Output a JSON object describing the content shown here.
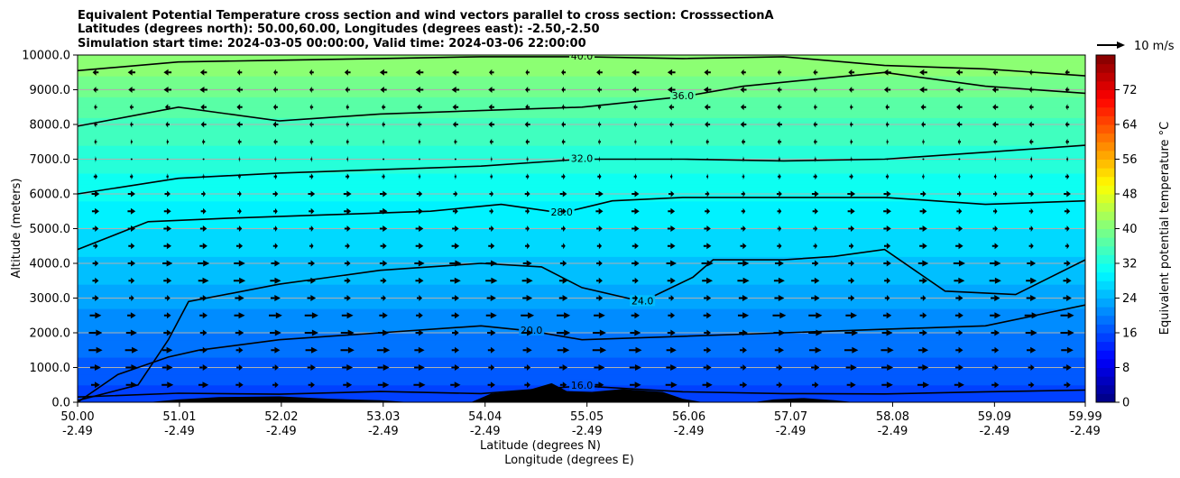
{
  "chart_data": {
    "type": "heatmap",
    "title": [
      "Equivalent Potential Temperature cross section and wind vectors parallel to cross section: CrosssectionA",
      "Latitudes (degrees north): 50.00,60.00, Longitudes (degrees east): -2.50,-2.50",
      "Simulation start time: 2024-03-05 00:00:00, Valid time: 2024-03-06 22:00:00"
    ],
    "xlabel": "Latitude (degrees N)",
    "xlabel2": "Longitude (degrees E)",
    "ylabel": "Altitude (meters)",
    "xlim": [
      50.0,
      59.99
    ],
    "ylim": [
      0,
      10000
    ],
    "x_ticks": [
      {
        "lat": 50.0,
        "lat_label": "50.00",
        "lon_label": "-2.49"
      },
      {
        "lat": 51.01,
        "lat_label": "51.01",
        "lon_label": "-2.49"
      },
      {
        "lat": 52.02,
        "lat_label": "52.02",
        "lon_label": "-2.49"
      },
      {
        "lat": 53.03,
        "lat_label": "53.03",
        "lon_label": "-2.49"
      },
      {
        "lat": 54.04,
        "lat_label": "54.04",
        "lon_label": "-2.49"
      },
      {
        "lat": 55.05,
        "lat_label": "55.05",
        "lon_label": "-2.49"
      },
      {
        "lat": 56.06,
        "lat_label": "56.06",
        "lon_label": "-2.49"
      },
      {
        "lat": 57.07,
        "lat_label": "57.07",
        "lon_label": "-2.49"
      },
      {
        "lat": 58.08,
        "lat_label": "58.08",
        "lon_label": "-2.49"
      },
      {
        "lat": 59.09,
        "lat_label": "59.09",
        "lon_label": "-2.49"
      },
      {
        "lat": 59.99,
        "lat_label": "59.99",
        "lon_label": "-2.49"
      }
    ],
    "y_ticks": [
      {
        "value": 0,
        "label": "0.0"
      },
      {
        "value": 1000,
        "label": "1000.0"
      },
      {
        "value": 2000,
        "label": "2000.0"
      },
      {
        "value": 3000,
        "label": "3000.0"
      },
      {
        "value": 4000,
        "label": "4000.0"
      },
      {
        "value": 5000,
        "label": "5000.0"
      },
      {
        "value": 6000,
        "label": "6000.0"
      },
      {
        "value": 7000,
        "label": "7000.0"
      },
      {
        "value": 8000,
        "label": "8000.0"
      },
      {
        "value": 9000,
        "label": "9000.0"
      },
      {
        "value": 10000,
        "label": "10000.0"
      }
    ],
    "grid": "horizontal",
    "colorbar": {
      "label": "Equivalent potential temperature °C",
      "range": [
        0,
        80
      ],
      "ticks": [
        {
          "value": 0,
          "label": "0"
        },
        {
          "value": 8,
          "label": "8"
        },
        {
          "value": 16,
          "label": "16"
        },
        {
          "value": 24,
          "label": "24"
        },
        {
          "value": 32,
          "label": "32"
        },
        {
          "value": 40,
          "label": "40"
        },
        {
          "value": 48,
          "label": "48"
        },
        {
          "value": 56,
          "label": "56"
        },
        {
          "value": 64,
          "label": "64"
        },
        {
          "value": 72,
          "label": "72"
        }
      ],
      "colormap": "jet",
      "placement": "right"
    },
    "quiver_key": {
      "label": "10 m/s",
      "speed": 10
    },
    "field_profile": [
      {
        "alt": 0,
        "value": 15
      },
      {
        "alt": 1000,
        "value": 17
      },
      {
        "alt": 2000,
        "value": 20
      },
      {
        "alt": 3000,
        "value": 23
      },
      {
        "alt": 4000,
        "value": 25.5
      },
      {
        "alt": 5000,
        "value": 28
      },
      {
        "alt": 6000,
        "value": 30.5
      },
      {
        "alt": 7000,
        "value": 33
      },
      {
        "alt": 8000,
        "value": 35.5
      },
      {
        "alt": 9000,
        "value": 38.5
      },
      {
        "alt": 10000,
        "value": 42
      }
    ],
    "contours": [
      {
        "level": 16.0,
        "label": "16.0",
        "points": [
          [
            50.0,
            150
          ],
          [
            51.0,
            260
          ],
          [
            52.0,
            230
          ],
          [
            53.0,
            310
          ],
          [
            54.0,
            250
          ],
          [
            55.0,
            470
          ],
          [
            56.0,
            300
          ],
          [
            57.0,
            250
          ],
          [
            58.0,
            240
          ],
          [
            59.0,
            300
          ],
          [
            59.99,
            350
          ]
        ]
      },
      {
        "level": 20.0,
        "label": "20.0",
        "points": [
          [
            50.0,
            0
          ],
          [
            50.4,
            800
          ],
          [
            50.9,
            1300
          ],
          [
            51.2,
            1500
          ],
          [
            52.0,
            1800
          ],
          [
            53.0,
            2000
          ],
          [
            54.0,
            2200
          ],
          [
            54.5,
            2050
          ],
          [
            55.0,
            1800
          ],
          [
            56.0,
            1900
          ],
          [
            57.0,
            2000
          ],
          [
            58.0,
            2100
          ],
          [
            59.0,
            2200
          ],
          [
            59.99,
            2800
          ]
        ]
      },
      {
        "level": 24.0,
        "label": "24.0",
        "points": [
          [
            50.0,
            50
          ],
          [
            50.6,
            500
          ],
          [
            50.9,
            1800
          ],
          [
            51.1,
            2900
          ],
          [
            52.0,
            3400
          ],
          [
            53.0,
            3800
          ],
          [
            54.0,
            4000
          ],
          [
            54.6,
            3900
          ],
          [
            55.0,
            3300
          ],
          [
            55.6,
            2900
          ],
          [
            56.1,
            3600
          ],
          [
            56.3,
            4100
          ],
          [
            57.0,
            4100
          ],
          [
            57.5,
            4200
          ],
          [
            58.0,
            4400
          ],
          [
            58.6,
            3200
          ],
          [
            59.3,
            3100
          ],
          [
            59.99,
            4100
          ]
        ]
      },
      {
        "level": 28.0,
        "label": "28.0",
        "points": [
          [
            50.0,
            4400
          ],
          [
            50.7,
            5200
          ],
          [
            51.5,
            5300
          ],
          [
            52.5,
            5400
          ],
          [
            53.5,
            5500
          ],
          [
            54.2,
            5700
          ],
          [
            54.8,
            5450
          ],
          [
            55.3,
            5800
          ],
          [
            56.0,
            5900
          ],
          [
            57.0,
            5900
          ],
          [
            58.0,
            5900
          ],
          [
            59.0,
            5700
          ],
          [
            59.99,
            5800
          ]
        ]
      },
      {
        "level": 32.0,
        "label": "32.0",
        "points": [
          [
            50.0,
            6000
          ],
          [
            51.0,
            6450
          ],
          [
            52.0,
            6600
          ],
          [
            53.0,
            6700
          ],
          [
            54.0,
            6800
          ],
          [
            55.0,
            7000
          ],
          [
            56.0,
            7000
          ],
          [
            57.0,
            6950
          ],
          [
            58.0,
            7000
          ],
          [
            59.0,
            7200
          ],
          [
            59.99,
            7400
          ]
        ]
      },
      {
        "level": 36.0,
        "label": "36.0",
        "points": [
          [
            50.0,
            7950
          ],
          [
            51.0,
            8500
          ],
          [
            52.0,
            8100
          ],
          [
            53.0,
            8300
          ],
          [
            54.0,
            8400
          ],
          [
            55.0,
            8500
          ],
          [
            56.0,
            8800
          ],
          [
            56.6,
            9100
          ],
          [
            57.3,
            9300
          ],
          [
            58.0,
            9500
          ],
          [
            59.0,
            9100
          ],
          [
            59.99,
            8900
          ]
        ]
      },
      {
        "level": 40.0,
        "label": "40.0",
        "points": [
          [
            50.0,
            9550
          ],
          [
            51.0,
            9800
          ],
          [
            52.0,
            9850
          ],
          [
            53.0,
            9900
          ],
          [
            54.0,
            9950
          ],
          [
            55.0,
            9950
          ],
          [
            56.0,
            9900
          ],
          [
            57.0,
            9950
          ],
          [
            58.0,
            9700
          ],
          [
            59.0,
            9600
          ],
          [
            59.99,
            9400
          ]
        ]
      }
    ],
    "terrain": [
      [
        53.9,
        0
      ],
      [
        54.1,
        250
      ],
      [
        54.3,
        300
      ],
      [
        54.5,
        380
      ],
      [
        54.7,
        550
      ],
      [
        54.85,
        320
      ],
      [
        55.1,
        300
      ],
      [
        55.4,
        380
      ],
      [
        55.8,
        300
      ],
      [
        56.0,
        100
      ],
      [
        56.2,
        0
      ],
      [
        56.7,
        0
      ],
      [
        56.9,
        80
      ],
      [
        57.2,
        120
      ],
      [
        57.5,
        60
      ],
      [
        57.7,
        0
      ]
    ],
    "terrain_left": [
      [
        50.7,
        0
      ],
      [
        51.0,
        80
      ],
      [
        51.4,
        150
      ],
      [
        52.0,
        170
      ],
      [
        52.5,
        100
      ],
      [
        53.0,
        60
      ],
      [
        53.3,
        0
      ]
    ],
    "wind_levels": [
      {
        "alt": 500,
        "u": 6
      },
      {
        "alt": 1000,
        "u": 6
      },
      {
        "alt": 1500,
        "u": 7
      },
      {
        "alt": 2000,
        "u": 7
      },
      {
        "alt": 2500,
        "u": 7
      },
      {
        "alt": 3000,
        "u": 5
      },
      {
        "alt": 3500,
        "u": 6
      },
      {
        "alt": 4000,
        "u": 6
      },
      {
        "alt": 4500,
        "u": 4
      },
      {
        "alt": 5000,
        "u": 4
      },
      {
        "alt": 5500,
        "u": 4
      },
      {
        "alt": 6000,
        "u": 4
      },
      {
        "alt": 6500,
        "u": 2
      },
      {
        "alt": 7000,
        "u": 1
      },
      {
        "alt": 7500,
        "u": -2
      },
      {
        "alt": 8000,
        "u": -3
      },
      {
        "alt": 8500,
        "u": -3
      },
      {
        "alt": 9000,
        "u": -4
      },
      {
        "alt": 9500,
        "u": -4
      }
    ]
  }
}
